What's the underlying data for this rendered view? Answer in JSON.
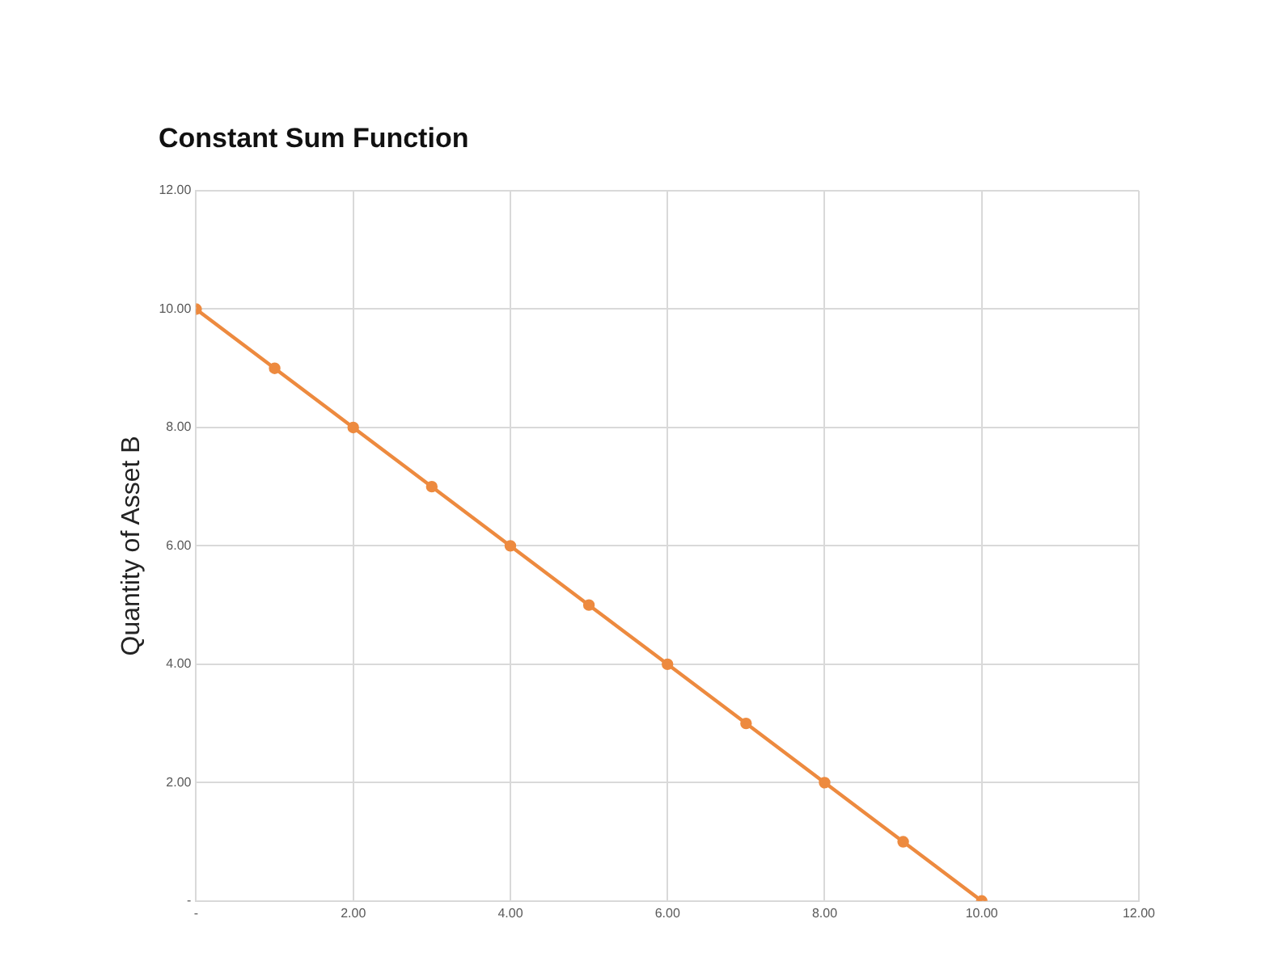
{
  "chart_data": {
    "type": "line",
    "title": "Constant Sum Function",
    "ylabel": "Quantity of Asset B",
    "x": [
      0,
      1,
      2,
      3,
      4,
      5,
      6,
      7,
      8,
      9,
      10
    ],
    "series": [
      {
        "color": "#ed8a3f",
        "values": [
          10,
          9,
          8,
          7,
          6,
          5,
          4,
          3,
          2,
          1,
          0
        ]
      }
    ],
    "xlim": [
      0,
      12
    ],
    "ylim": [
      0,
      12
    ],
    "xticks": [
      {
        "value": 0,
        "label": "-"
      },
      {
        "value": 2,
        "label": "2.00"
      },
      {
        "value": 4,
        "label": "4.00"
      },
      {
        "value": 6,
        "label": "6.00"
      },
      {
        "value": 8,
        "label": "8.00"
      },
      {
        "value": 10,
        "label": "10.00"
      },
      {
        "value": 12,
        "label": "12.00"
      }
    ],
    "yticks": [
      {
        "value": 0,
        "label": "-"
      },
      {
        "value": 2,
        "label": "2.00"
      },
      {
        "value": 4,
        "label": "4.00"
      },
      {
        "value": 6,
        "label": "6.00"
      },
      {
        "value": 8,
        "label": "8.00"
      },
      {
        "value": 10,
        "label": "10.00"
      },
      {
        "value": 12,
        "label": "12.00"
      }
    ],
    "grid": true,
    "legend": false,
    "marker": "circle",
    "line_style": "solid"
  }
}
